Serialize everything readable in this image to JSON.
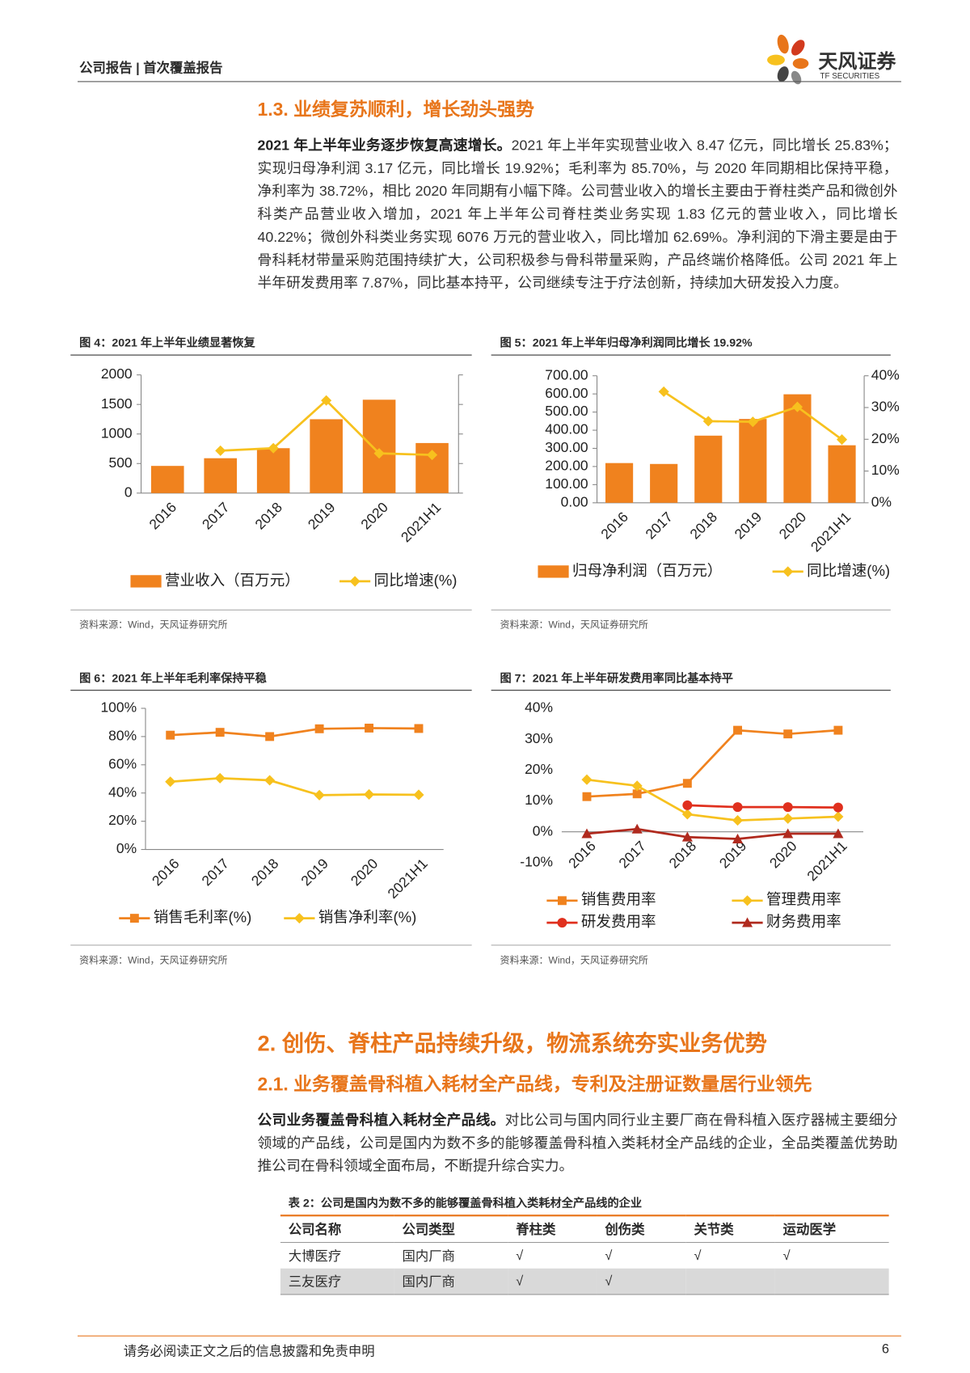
{
  "header": {
    "report_type": "公司报告 | 首次覆盖报告",
    "brand_cn": "天风证券",
    "brand_en": "TF SECURITIES"
  },
  "section_1_3": {
    "heading": "1.3. 业绩复苏顺利，增长劲头强势",
    "lead": "2021 年上半年业务逐步恢复高速增长。",
    "body": "2021 年上半年实现营业收入 8.47 亿元，同比增长 25.83%；实现归母净利润 3.17 亿元，同比增长 19.92%；毛利率为 85.70%，与 2020 年同期相比保持平稳，净利率为 38.72%，相比 2020 年同期有小幅下降。公司营业收入的增长主要由于脊柱类产品和微创外科类产品营业收入增加，2021 年上半年公司脊柱类业务实现 1.83 亿元的营业收入，同比增长 40.22%；微创外科类业务实现 6076 万元的营业收入，同比增加 62.69%。净利润的下滑主要是由于骨科耗材带量采购范围持续扩大，公司积极参与骨科带量采购，产品终端价格降低。公司 2021 年上半年研发费用率 7.87%，同比基本持平，公司继续专注于疗法创新，持续加大研发投入力度。"
  },
  "chart_data": [
    {
      "type": "combo",
      "title": "图 4：2021 年上半年业绩显著恢复",
      "source": "资料来源：Wind，天风证券研究所",
      "categories": [
        "2016",
        "2017",
        "2018",
        "2019",
        "2020",
        "2021H1"
      ],
      "series": [
        {
          "name": "营业收入（百万元）",
          "type": "bar",
          "color": "#f0821e",
          "values": [
            460,
            590,
            760,
            1250,
            1580,
            847
          ]
        },
        {
          "name": "同比增速(%)",
          "type": "line",
          "axis": "y2",
          "color": "#f7c11e",
          "marker": "diamond",
          "values": [
            null,
            28.7,
            30.4,
            62.7,
            26.9,
            25.83
          ]
        }
      ],
      "ylim": [
        0,
        2000
      ],
      "yticks": [
        0,
        500,
        1000,
        1500,
        2000
      ],
      "y2lim": [
        0,
        80
      ]
    },
    {
      "type": "combo",
      "title": "图 5：2021 年上半年归母净利润同比增长 19.92%",
      "source": "资料来源：Wind，天风证券研究所",
      "categories": [
        "2016",
        "2017",
        "2018",
        "2019",
        "2020",
        "2021H1"
      ],
      "series": [
        {
          "name": "归母净利润（百万元）",
          "type": "bar",
          "color": "#f0821e",
          "values": [
            219,
            214,
            370,
            462,
            598,
            317
          ]
        },
        {
          "name": "同比增速(%)",
          "type": "line",
          "axis": "y2",
          "color": "#f7c11e",
          "marker": "diamond",
          "values": [
            null,
            35.0,
            25.7,
            25.5,
            30.2,
            19.92
          ]
        }
      ],
      "ylim": [
        0,
        700
      ],
      "yticks": [
        {
          "value": 0,
          "label": "0.00"
        },
        {
          "value": 100,
          "label": "100.00"
        },
        {
          "value": 200,
          "label": "200.00"
        },
        {
          "value": 300,
          "label": "300.00"
        },
        {
          "value": 400,
          "label": "400.00"
        },
        {
          "value": 500,
          "label": "500.00"
        },
        {
          "value": 600,
          "label": "600.00"
        },
        {
          "value": 700,
          "label": "700.00"
        }
      ],
      "y2lim": [
        0,
        40
      ],
      "y2ticks": [
        {
          "value": 0,
          "label": "0%"
        },
        {
          "value": 10,
          "label": "10%"
        },
        {
          "value": 20,
          "label": "20%"
        },
        {
          "value": 30,
          "label": "30%"
        },
        {
          "value": 40,
          "label": "40%"
        }
      ]
    },
    {
      "type": "line",
      "title": "图 6：2021 年上半年毛利率保持平稳",
      "source": "资料来源：Wind，天风证券研究所",
      "categories": [
        "2016",
        "2017",
        "2018",
        "2019",
        "2020",
        "2021H1"
      ],
      "series": [
        {
          "name": "销售毛利率(%)",
          "color": "#f0821e",
          "marker": "square",
          "values": [
            81,
            83,
            80,
            85.5,
            86,
            85.7
          ]
        },
        {
          "name": "销售净利率(%)",
          "color": "#f7c11e",
          "marker": "diamond",
          "values": [
            48,
            50.5,
            49,
            38.5,
            39,
            38.72
          ]
        }
      ],
      "ylim": [
        0,
        100
      ],
      "yticks": [
        {
          "value": 0,
          "label": "0%"
        },
        {
          "value": 20,
          "label": "20%"
        },
        {
          "value": 40,
          "label": "40%"
        },
        {
          "value": 60,
          "label": "60%"
        },
        {
          "value": 80,
          "label": "80%"
        },
        {
          "value": 100,
          "label": "100%"
        }
      ]
    },
    {
      "type": "line",
      "title": "图 7：2021 年上半年研发费用率同比基本持平",
      "source": "资料来源：Wind，天风证券研究所",
      "categories": [
        "2016",
        "2017",
        "2018",
        "2019",
        "2020",
        "2021H1"
      ],
      "series": [
        {
          "name": "销售费用率",
          "color": "#f0821e",
          "marker": "square",
          "values": [
            11.4,
            12.3,
            15.7,
            32.9,
            31.7,
            32.9
          ]
        },
        {
          "name": "管理费用率",
          "color": "#f7c11e",
          "marker": "diamond",
          "values": [
            16.9,
            14.9,
            5.7,
            3.7,
            4.3,
            4.9
          ]
        },
        {
          "name": "研发费用率",
          "color": "#e0301e",
          "marker": "circle",
          "values": [
            null,
            null,
            8.6,
            8,
            8,
            7.87
          ]
        },
        {
          "name": "财务费用率",
          "color": "#b02a1e",
          "marker": "triangle",
          "values": [
            -0.6,
            0.9,
            -1.7,
            -2.3,
            -0.6,
            -0.6
          ]
        }
      ],
      "ylim": [
        -10,
        40
      ],
      "yticks": [
        {
          "value": -10,
          "label": "-10%"
        },
        {
          "value": 0,
          "label": "0%"
        },
        {
          "value": 10,
          "label": "10%"
        },
        {
          "value": 20,
          "label": "20%"
        },
        {
          "value": 30,
          "label": "30%"
        },
        {
          "value": 40,
          "label": "40%"
        }
      ]
    }
  ],
  "section_2": {
    "heading": "2. 创伤、脊柱产品持续升级，物流系统夯实业务优势",
    "sub_heading": "2.1. 业务覆盖骨科植入耗材全产品线，专利及注册证数量居行业领先",
    "lead": "公司业务覆盖骨科植入耗材全产品线。",
    "body": "对比公司与国内同行业主要厂商在骨科植入医疗器械主要细分领域的产品线，公司是国内为数不多的能够覆盖骨科植入类耗材全产品线的企业，全品类覆盖优势助推公司在骨科领域全面布局，不断提升综合实力。"
  },
  "table": {
    "title": "表 2：公司是国内为数不多的能够覆盖骨科植入类耗材全产品线的企业",
    "columns": [
      "公司名称",
      "公司类型",
      "脊柱类",
      "创伤类",
      "关节类",
      "运动医学"
    ],
    "rows": [
      [
        "大博医疗",
        "国内厂商",
        "√",
        "√",
        "√",
        "√"
      ],
      [
        "三友医疗",
        "国内厂商",
        "√",
        "√",
        null,
        null
      ]
    ]
  },
  "footer": {
    "disclaimer": "请务必阅读正文之后的信息披露和免责申明",
    "page": 6
  }
}
